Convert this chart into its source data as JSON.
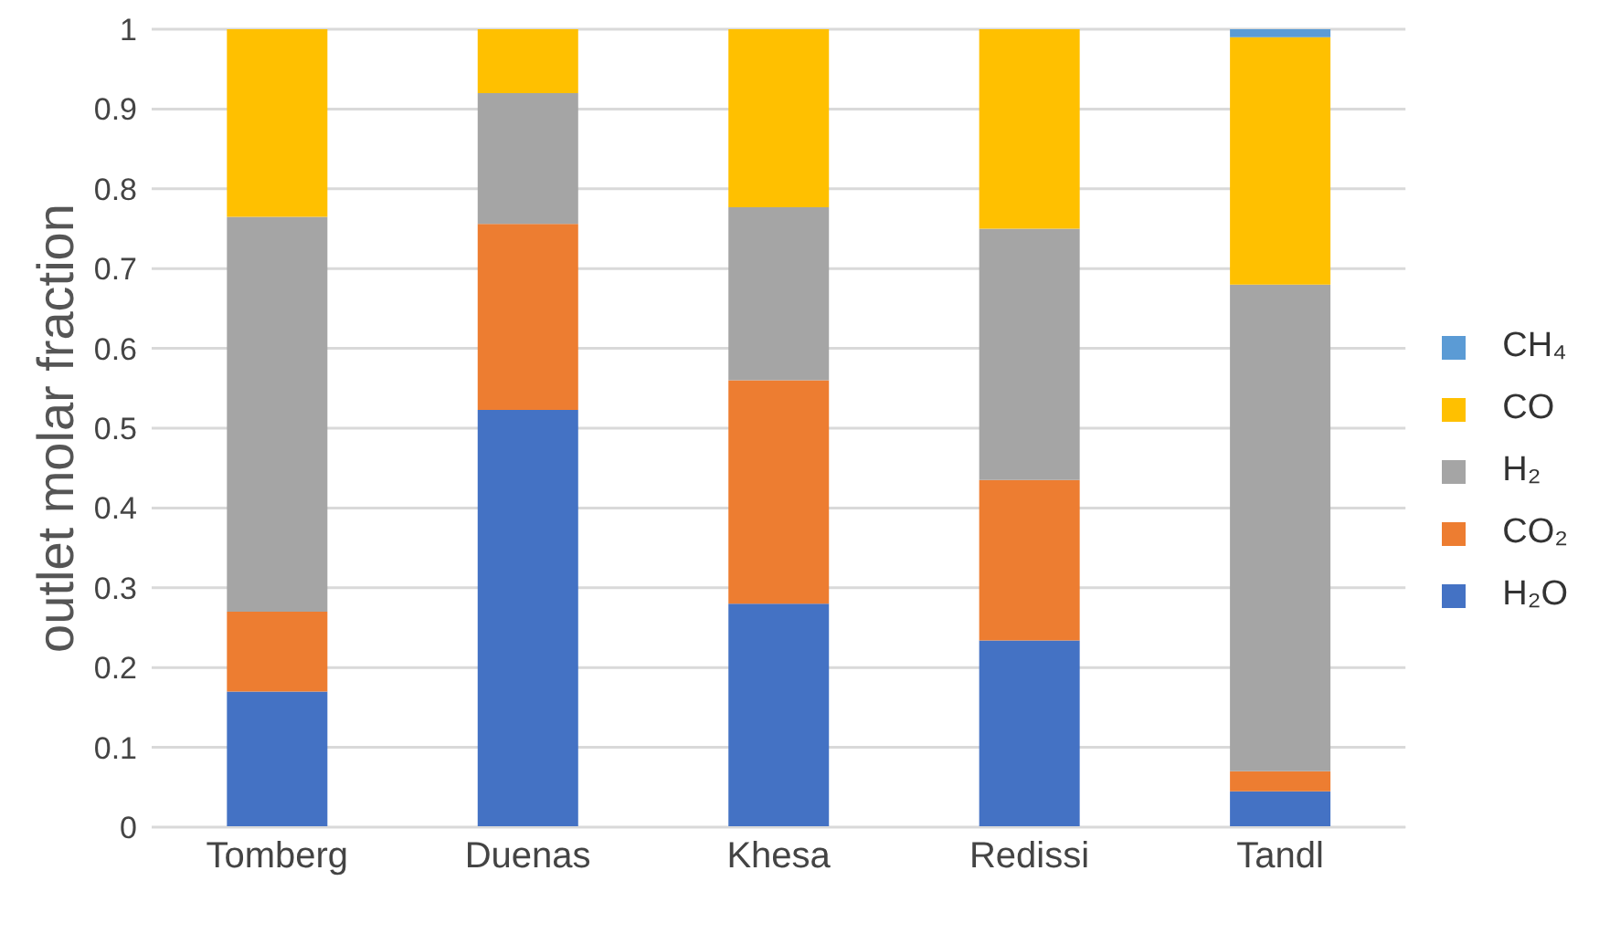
{
  "chart_data": {
    "type": "bar",
    "stacked": true,
    "ylabel": "outlet molar fraction",
    "categories": [
      "Tomberg",
      "Duenas",
      "Khesa",
      "Redissi",
      "Tandl"
    ],
    "series": [
      {
        "name": "H₂O",
        "color": "#4472c4",
        "values": [
          0.17,
          0.523,
          0.28,
          0.234,
          0.045
        ]
      },
      {
        "name": "CO₂",
        "color": "#ed7d31",
        "values": [
          0.1,
          0.233,
          0.28,
          0.201,
          0.025
        ]
      },
      {
        "name": "H₂",
        "color": "#a5a5a5",
        "values": [
          0.495,
          0.164,
          0.217,
          0.315,
          0.61
        ]
      },
      {
        "name": "CO",
        "color": "#ffc000",
        "values": [
          0.235,
          0.08,
          0.223,
          0.25,
          0.31
        ]
      },
      {
        "name": "CH₄",
        "color": "#5b9bd5",
        "values": [
          0,
          0,
          0,
          0,
          0.01
        ]
      }
    ],
    "ylim": [
      0,
      1
    ],
    "yticks": [
      0,
      0.1,
      0.2,
      0.3,
      0.4,
      0.5,
      0.6,
      0.7,
      0.8,
      0.9,
      1
    ],
    "grid": "y",
    "legend": "right"
  }
}
